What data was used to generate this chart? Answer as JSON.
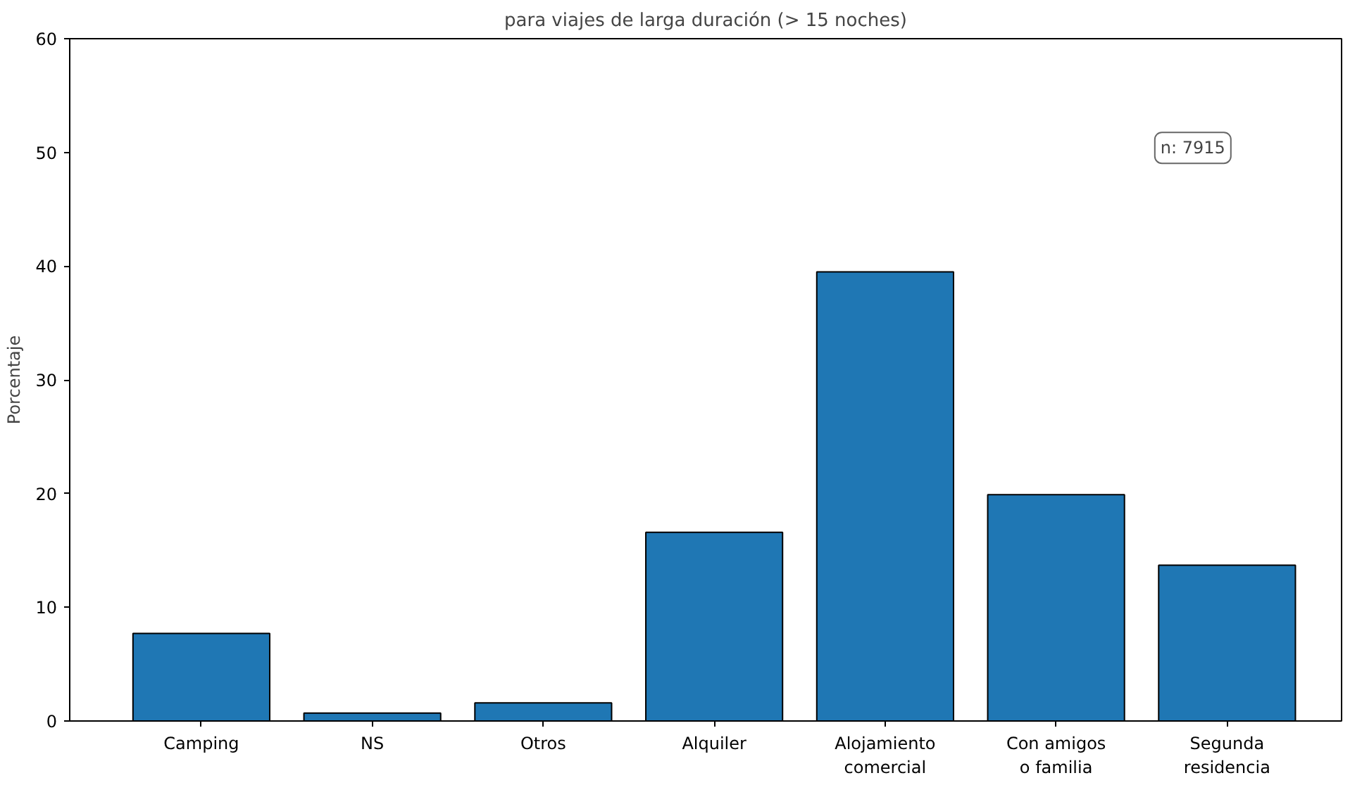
{
  "chart_data": {
    "type": "bar",
    "title": "para viajes de larga duración (> 15 noches)",
    "ylabel": "Porcentaje",
    "categories": [
      "Camping",
      "NS",
      "Otros",
      "Alquiler",
      "Alojamiento\ncomercial",
      "Con amigos\no familia",
      "Segunda\nresidencia"
    ],
    "values": [
      7.7,
      0.7,
      1.6,
      16.6,
      39.5,
      19.9,
      13.7
    ],
    "color": "#1f77b4",
    "ylim": [
      0,
      60
    ],
    "yticks": [
      0,
      10,
      20,
      30,
      40,
      50,
      60
    ],
    "grid": false,
    "annotations": [
      "n: 7915"
    ]
  }
}
